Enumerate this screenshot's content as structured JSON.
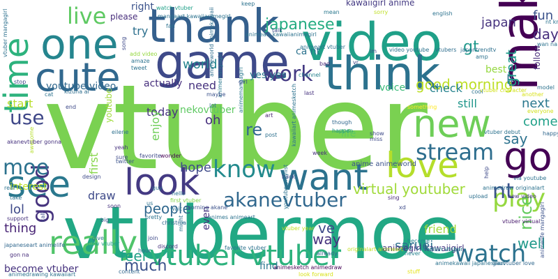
{
  "words": [
    {
      "text": "vtuber",
      "color": "#7ad151"
    },
    {
      "text": "vtubermoe",
      "color": "#22a884"
    },
    {
      "text": "make",
      "color": "#440154"
    },
    {
      "text": "video",
      "color": "#1fa088"
    },
    {
      "text": "thank",
      "color": "#35608d"
    },
    {
      "text": "game",
      "color": "#3e4a89"
    },
    {
      "text": "one",
      "color": "#25858e"
    },
    {
      "text": "think",
      "color": "#2c728e"
    },
    {
      "text": "cute",
      "color": "#31688e"
    },
    {
      "text": "time",
      "color": "#2db27d"
    },
    {
      "text": "go",
      "color": "#440154"
    },
    {
      "text": "new",
      "color": "#6ece58"
    },
    {
      "text": "love",
      "color": "#b5de2b"
    },
    {
      "text": "want",
      "color": "#2c728e"
    },
    {
      "text": "see",
      "color": "#2a788e"
    },
    {
      "text": "look",
      "color": "#443a83"
    },
    {
      "text": "know",
      "color": "#238a8d"
    },
    {
      "text": "stream",
      "color": "#2e6e8e"
    },
    {
      "text": "play",
      "color": "#95d840"
    },
    {
      "text": "really",
      "color": "#50c46a"
    },
    {
      "text": "watch",
      "color": "#2c728e"
    },
    {
      "text": "vtuber vtuber",
      "color": "#2db27d"
    },
    {
      "text": "good",
      "color": "#46337e"
    },
    {
      "text": "work",
      "color": "#443a83"
    },
    {
      "text": "moe",
      "color": "#2c728e"
    },
    {
      "text": "use",
      "color": "#3f4788"
    },
    {
      "text": "live",
      "color": "#5ec962"
    },
    {
      "text": "akanevtuber",
      "color": "#31688e"
    },
    {
      "text": "nt",
      "color": "#3b528b"
    },
    {
      "text": "saruei",
      "color": "#2d708e"
    },
    {
      "text": "virtual youtuber",
      "color": "#a0da39"
    },
    {
      "text": "good morning",
      "color": "#bddf26"
    },
    {
      "text": "japanese",
      "color": "#25ac82"
    },
    {
      "text": "say",
      "color": "#2c728e"
    },
    {
      "text": "well",
      "color": "#1f998a"
    },
    {
      "text": "lol",
      "color": "#3e4a89"
    },
    {
      "text": "thing",
      "color": "#482475"
    },
    {
      "text": "much",
      "color": "#3b528b"
    },
    {
      "text": "feel",
      "color": "#1fa088"
    },
    {
      "text": "people",
      "color": "#31688e"
    },
    {
      "text": "today",
      "color": "#46337e"
    },
    {
      "text": "hope",
      "color": "#3e4a89"
    },
    {
      "text": "re",
      "color": "#31688e"
    },
    {
      "text": "oh",
      "color": "#472f7d"
    },
    {
      "text": "ll",
      "color": "#2c728e"
    },
    {
      "text": "gt",
      "color": "#1f988b"
    },
    {
      "text": "day",
      "color": "#472f7d"
    },
    {
      "text": "fun",
      "color": "#3b528b"
    },
    {
      "text": "japan",
      "color": "#46337e"
    },
    {
      "text": "come",
      "color": "#1fa088"
    },
    {
      "text": "next",
      "color": "#2a788e"
    },
    {
      "text": "still",
      "color": "#1f968b"
    },
    {
      "text": "check",
      "color": "#26828e"
    },
    {
      "text": "best",
      "color": "#95d840"
    },
    {
      "text": "great",
      "color": "#1e9b8a"
    },
    {
      "text": "nice",
      "color": "#63cb5f"
    },
    {
      "text": "ve",
      "color": "#3e4a89"
    },
    {
      "text": "way",
      "color": "#46327e"
    },
    {
      "text": "friend",
      "color": "#a0da39"
    },
    {
      "text": "first",
      "color": "#86d549"
    },
    {
      "text": "draw",
      "color": "#3e4a89"
    },
    {
      "text": "start",
      "color": "#b8de29"
    },
    {
      "text": "try",
      "color": "#2d708e"
    },
    {
      "text": "world",
      "color": "#25848e"
    },
    {
      "text": "need",
      "color": "#46327e"
    },
    {
      "text": "actually",
      "color": "#472f7d"
    },
    {
      "text": "youtube video",
      "color": "#31688e"
    },
    {
      "text": "nekovtuber",
      "color": "#5ec962"
    },
    {
      "text": "yes yes",
      "color": "#2a788e"
    },
    {
      "text": "ca nt",
      "color": "#2c728e"
    },
    {
      "text": "right",
      "color": "#3b528b"
    },
    {
      "text": "please",
      "color": "#472d7b"
    },
    {
      "text": "voice",
      "color": "#38b977"
    },
    {
      "text": "find",
      "color": "#2a788e"
    },
    {
      "text": "become vtuber",
      "color": "#46327e"
    },
    {
      "text": "interest",
      "color": "#bddf26"
    },
    {
      "text": "enjoy",
      "color": "#6ece58"
    },
    {
      "text": "even",
      "color": "#46327e"
    },
    {
      "text": "life",
      "color": "#5ec962"
    },
    {
      "text": "follow",
      "color": "#472c7a"
    },
    {
      "text": "youtube",
      "color": "#9fda3a"
    },
    {
      "text": "kawaiigirl anime",
      "color": "#443a83"
    },
    {
      "text": "vtuber mangagirl",
      "color": "#2d708e"
    },
    {
      "text": "watch vtuber",
      "color": "#1fa088"
    },
    {
      "text": "mangaart kawaiianimegirl",
      "color": "#2c728e"
    },
    {
      "text": "animemangagirl",
      "color": "#2a788e"
    },
    {
      "text": "animegirl kawaiigirl",
      "color": "#453781"
    },
    {
      "text": "animesketch animedraw",
      "color": "#440154"
    },
    {
      "text": "vtuber character",
      "color": "#d2e21b"
    },
    {
      "text": "akanevtuber gonna",
      "color": "#46327e"
    },
    {
      "text": "kizuna ai",
      "color": "#2e6e8e"
    },
    {
      "text": "japaneseart animelife",
      "color": "#31688e"
    },
    {
      "text": "animelife mangagirl",
      "color": "#3b528b"
    },
    {
      "text": "gauvtuber love",
      "color": "#31688e"
    },
    {
      "text": "english vtuber",
      "color": "#25848e"
    },
    {
      "text": "favorite vtuber",
      "color": "#2c728e"
    },
    {
      "text": "new vtuber",
      "color": "#1fa088"
    },
    {
      "text": "vtuber virtual",
      "color": "#481b6d"
    },
    {
      "text": "animemangagirl",
      "color": "#2a788e"
    },
    {
      "text": "animeworld animekawaii",
      "color": "#2e6e8e"
    },
    {
      "text": "anime animeworld",
      "color": "#3b528b"
    },
    {
      "text": "animes animeart",
      "color": "#2c728e"
    },
    {
      "text": "twitter",
      "color": "#3b528b"
    },
    {
      "text": "happen",
      "color": "#20928c"
    },
    {
      "text": "though",
      "color": "#31688e"
    },
    {
      "text": "channel",
      "color": "#26828e"
    },
    {
      "text": "video youtube",
      "color": "#2c728e"
    },
    {
      "text": "vtubers",
      "color": "#2e6e8e"
    },
    {
      "text": "japantrendtv",
      "color": "#2d708e"
    },
    {
      "text": "english",
      "color": "#2c728e"
    },
    {
      "text": "vtuber year",
      "color": "#c2df23"
    },
    {
      "text": "content",
      "color": "#31688e"
    },
    {
      "text": "look forward",
      "color": "#d8e219"
    },
    {
      "text": "stuff",
      "color": "#e5e419"
    },
    {
      "text": "already",
      "color": "#31688e"
    },
    {
      "text": "never",
      "color": "#25848e"
    },
    {
      "text": "become",
      "color": "#25848e"
    },
    {
      "text": "something",
      "color": "#fde725"
    },
    {
      "text": "model",
      "color": "#2c728e"
    },
    {
      "text": "everyone",
      "color": "#d0e11c"
    },
    {
      "text": "happy",
      "color": "#31688e"
    },
    {
      "text": "via youtube",
      "color": "#2c728e"
    },
    {
      "text": "upload",
      "color": "#2d708e"
    },
    {
      "text": "new video",
      "color": "#46327e"
    },
    {
      "text": "sing",
      "color": "#482878"
    },
    {
      "text": "last",
      "color": "#46327e"
    },
    {
      "text": "show",
      "color": "#3e4a89"
    },
    {
      "text": "miss",
      "color": "#3e4a89"
    },
    {
      "text": "week",
      "color": "#472d7b"
    },
    {
      "text": "post",
      "color": "#2d708e"
    },
    {
      "text": "art",
      "color": "#482173"
    },
    {
      "text": "wonder",
      "color": "#440154"
    },
    {
      "text": "guy",
      "color": "#2d708e"
    },
    {
      "text": "hello",
      "color": "#2c728e"
    },
    {
      "text": "design",
      "color": "#3e4a89"
    },
    {
      "text": "soon",
      "color": "#46327e"
    },
    {
      "text": "first vtuber",
      "color": "#84d44b"
    },
    {
      "text": "morning akane",
      "color": "#3b528b"
    },
    {
      "text": "christma",
      "color": "#31688e"
    },
    {
      "text": "pretty",
      "color": "#2c728e"
    },
    {
      "text": "join",
      "color": "#3e4a89"
    },
    {
      "text": "discord",
      "color": "#46327e"
    },
    {
      "text": "hour",
      "color": "#31688e"
    },
    {
      "text": "big",
      "color": "#3b528b"
    },
    {
      "text": "give",
      "color": "#2c728e"
    },
    {
      "text": "support",
      "color": "#46327e"
    },
    {
      "text": "take",
      "color": "#2c728e"
    },
    {
      "text": "real",
      "color": "#2c728e"
    },
    {
      "text": "eilene",
      "color": "#2d708e"
    },
    {
      "text": "yeah",
      "color": "#46327e"
    },
    {
      "text": "sure",
      "color": "#3e4a89"
    },
    {
      "text": "end",
      "color": "#3e4a89"
    },
    {
      "text": "cat",
      "color": "#2c728e"
    },
    {
      "text": "maybe",
      "color": "#3b528b"
    },
    {
      "text": "lot",
      "color": "#2d708e"
    },
    {
      "text": "girl",
      "color": "#3e4a89"
    },
    {
      "text": "fan",
      "color": "#2c728e"
    },
    {
      "text": "talk",
      "color": "#3e4a89"
    },
    {
      "text": "bad",
      "color": "#482878"
    },
    {
      "text": "mean",
      "color": "#2a788e"
    },
    {
      "text": "sorry",
      "color": "#bfdf25"
    },
    {
      "text": "song",
      "color": "#3e4a89"
    },
    {
      "text": "add video",
      "color": "#95d840"
    },
    {
      "text": "amaze",
      "color": "#2c728e"
    },
    {
      "text": "tweet",
      "color": "#2c728e"
    },
    {
      "text": "cool",
      "color": "#2c728e"
    },
    {
      "text": "another",
      "color": "#d8e219"
    },
    {
      "text": "wait",
      "color": "#2d708e"
    },
    {
      "text": "us",
      "color": "#2c728e"
    },
    {
      "text": "gon na",
      "color": "#472d7b"
    },
    {
      "text": "wan na",
      "color": "#2c728e"
    },
    {
      "text": "nt know",
      "color": "#2c728e"
    },
    {
      "text": "stop",
      "color": "#3e4a89"
    },
    {
      "text": "keep",
      "color": "#2c728e"
    },
    {
      "text": "awesome",
      "color": "#b5de2b"
    },
    {
      "text": "xd",
      "color": "#3e4a89"
    },
    {
      "text": "vr",
      "color": "#3e4a89"
    },
    {
      "text": "im",
      "color": "#3e4a89"
    },
    {
      "text": "amp",
      "color": "#2c728e"
    },
    {
      "text": "help",
      "color": "#3e4a89"
    },
    {
      "text": "call",
      "color": "#3e4a89"
    },
    {
      "text": "might",
      "color": "#2c728e"
    },
    {
      "text": "favorite",
      "color": "#3e4a89"
    },
    {
      "text": "back",
      "color": "#3e4a89"
    },
    {
      "text": "animeart kawaiianimegirl",
      "color": "#2c728e"
    },
    {
      "text": "animekawaii japaneseart",
      "color": "#2c728e"
    },
    {
      "text": "originalart animeart",
      "color": "#c2df23"
    },
    {
      "text": "youtube playlist",
      "color": "#2c728e"
    },
    {
      "text": "animedraw originalart",
      "color": "#2c728e"
    },
    {
      "text": "kawaiiart animesketch",
      "color": "#2c728e"
    },
    {
      "text": "vtuber debut",
      "color": "#2c728e"
    },
    {
      "text": "animedrawing kawaiiart",
      "color": "#2c728e"
    },
    {
      "text": "animeart vtuber",
      "color": "#2c728e"
    }
  ]
}
